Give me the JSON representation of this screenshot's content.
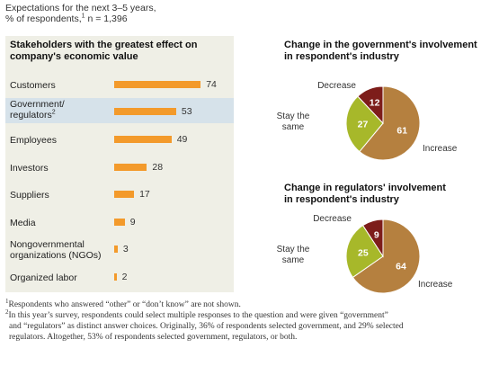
{
  "header": {
    "line1": "Expectations for the next 3–5 years,",
    "line2_pre": "% of respondents,",
    "line2_sup": "1",
    "line2_post": " n = 1,396"
  },
  "left_panel": {
    "title_line1": "Stakeholders with the greatest effect on",
    "title_line2": "company's economic value"
  },
  "colors": {
    "bar": "#f39a2b",
    "highlight": "#d6e2ea",
    "panel_bg": "#efefe6",
    "increase": "#b5803f",
    "stay": "#a7b82a",
    "decrease": "#7d1d1a"
  },
  "chart_data": [
    {
      "type": "bar",
      "title": "Stakeholders with the greatest effect on company's economic value",
      "orientation": "horizontal",
      "categories": [
        "Customers",
        "Government/ regulators",
        "Employees",
        "Investors",
        "Suppliers",
        "Media",
        "Nongovernmental organizations (NGOs)",
        "Organized labor"
      ],
      "label_lines": [
        [
          "Customers"
        ],
        [
          "Government/",
          "regulators"
        ],
        [
          "Employees"
        ],
        [
          "Investors"
        ],
        [
          "Suppliers"
        ],
        [
          "Media"
        ],
        [
          "Nongovernmental",
          "organizations (NGOs)"
        ],
        [
          "Organized labor"
        ]
      ],
      "label_sups": [
        "",
        "2",
        "",
        "",
        "",
        "",
        "",
        ""
      ],
      "values": [
        74,
        53,
        49,
        28,
        17,
        9,
        3,
        2
      ],
      "highlighted_index": 1,
      "xlim": [
        0,
        100
      ]
    },
    {
      "type": "pie",
      "title_line1": "Change in the government's involvement",
      "title_line2": "in respondent's industry",
      "slices": [
        {
          "label": "Increase",
          "label_lines": [
            "Increase"
          ],
          "value": 61
        },
        {
          "label": "Stay the same",
          "label_lines": [
            "Stay the",
            "same"
          ],
          "value": 27
        },
        {
          "label": "Decrease",
          "label_lines": [
            "Decrease"
          ],
          "value": 12
        }
      ]
    },
    {
      "type": "pie",
      "title_line1": "Change in regulators' involvement",
      "title_line2": "in respondent's industry",
      "slices": [
        {
          "label": "Increase",
          "label_lines": [
            "Increase"
          ],
          "value": 64
        },
        {
          "label": "Stay the same",
          "label_lines": [
            "Stay the",
            "same"
          ],
          "value": 25
        },
        {
          "label": "Decrease",
          "label_lines": [
            "Decrease"
          ],
          "value": 9
        }
      ]
    }
  ],
  "footnotes": {
    "fn1_sup": "1",
    "fn1_text": "Respondents who answered “other” or “don’t know” are not shown.",
    "fn2_sup": "2",
    "fn2_line1": "In this year’s survey, respondents could select multiple responses to the question and were given “government”",
    "fn2_line2": "and “regulators” as distinct answer choices. Originally, 36% of respondents selected government, and 29% selected",
    "fn2_line3": "regulators. Altogether, 53% of respondents selected government, regulators, or both."
  }
}
